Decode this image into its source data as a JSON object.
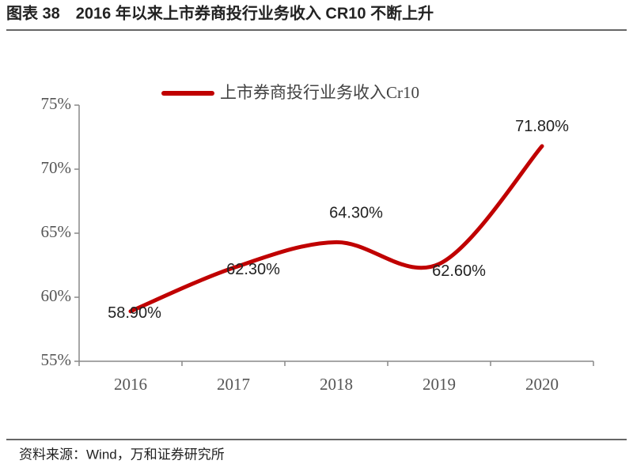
{
  "chart_data": {
    "type": "line",
    "title": "图表 38　2016 年以来上市券商投行业务收入 CR10 不断上升",
    "source": "资料来源：Wind，万和证券研究所",
    "categories": [
      "2016",
      "2017",
      "2018",
      "2019",
      "2020"
    ],
    "series": [
      {
        "name": "上市券商投行业务收入Cr10",
        "color": "#c00000",
        "values": [
          58.9,
          62.3,
          64.3,
          62.6,
          71.8
        ],
        "value_labels": [
          "58.90%",
          "62.30%",
          "64.30%",
          "62.60%",
          "71.80%"
        ]
      }
    ],
    "ylim": [
      55,
      75
    ],
    "yticks": [
      {
        "value": 55,
        "label": "55%"
      },
      {
        "value": 60,
        "label": "60%"
      },
      {
        "value": 65,
        "label": "65%"
      },
      {
        "value": 70,
        "label": "70%"
      },
      {
        "value": 75,
        "label": "75%"
      }
    ]
  }
}
